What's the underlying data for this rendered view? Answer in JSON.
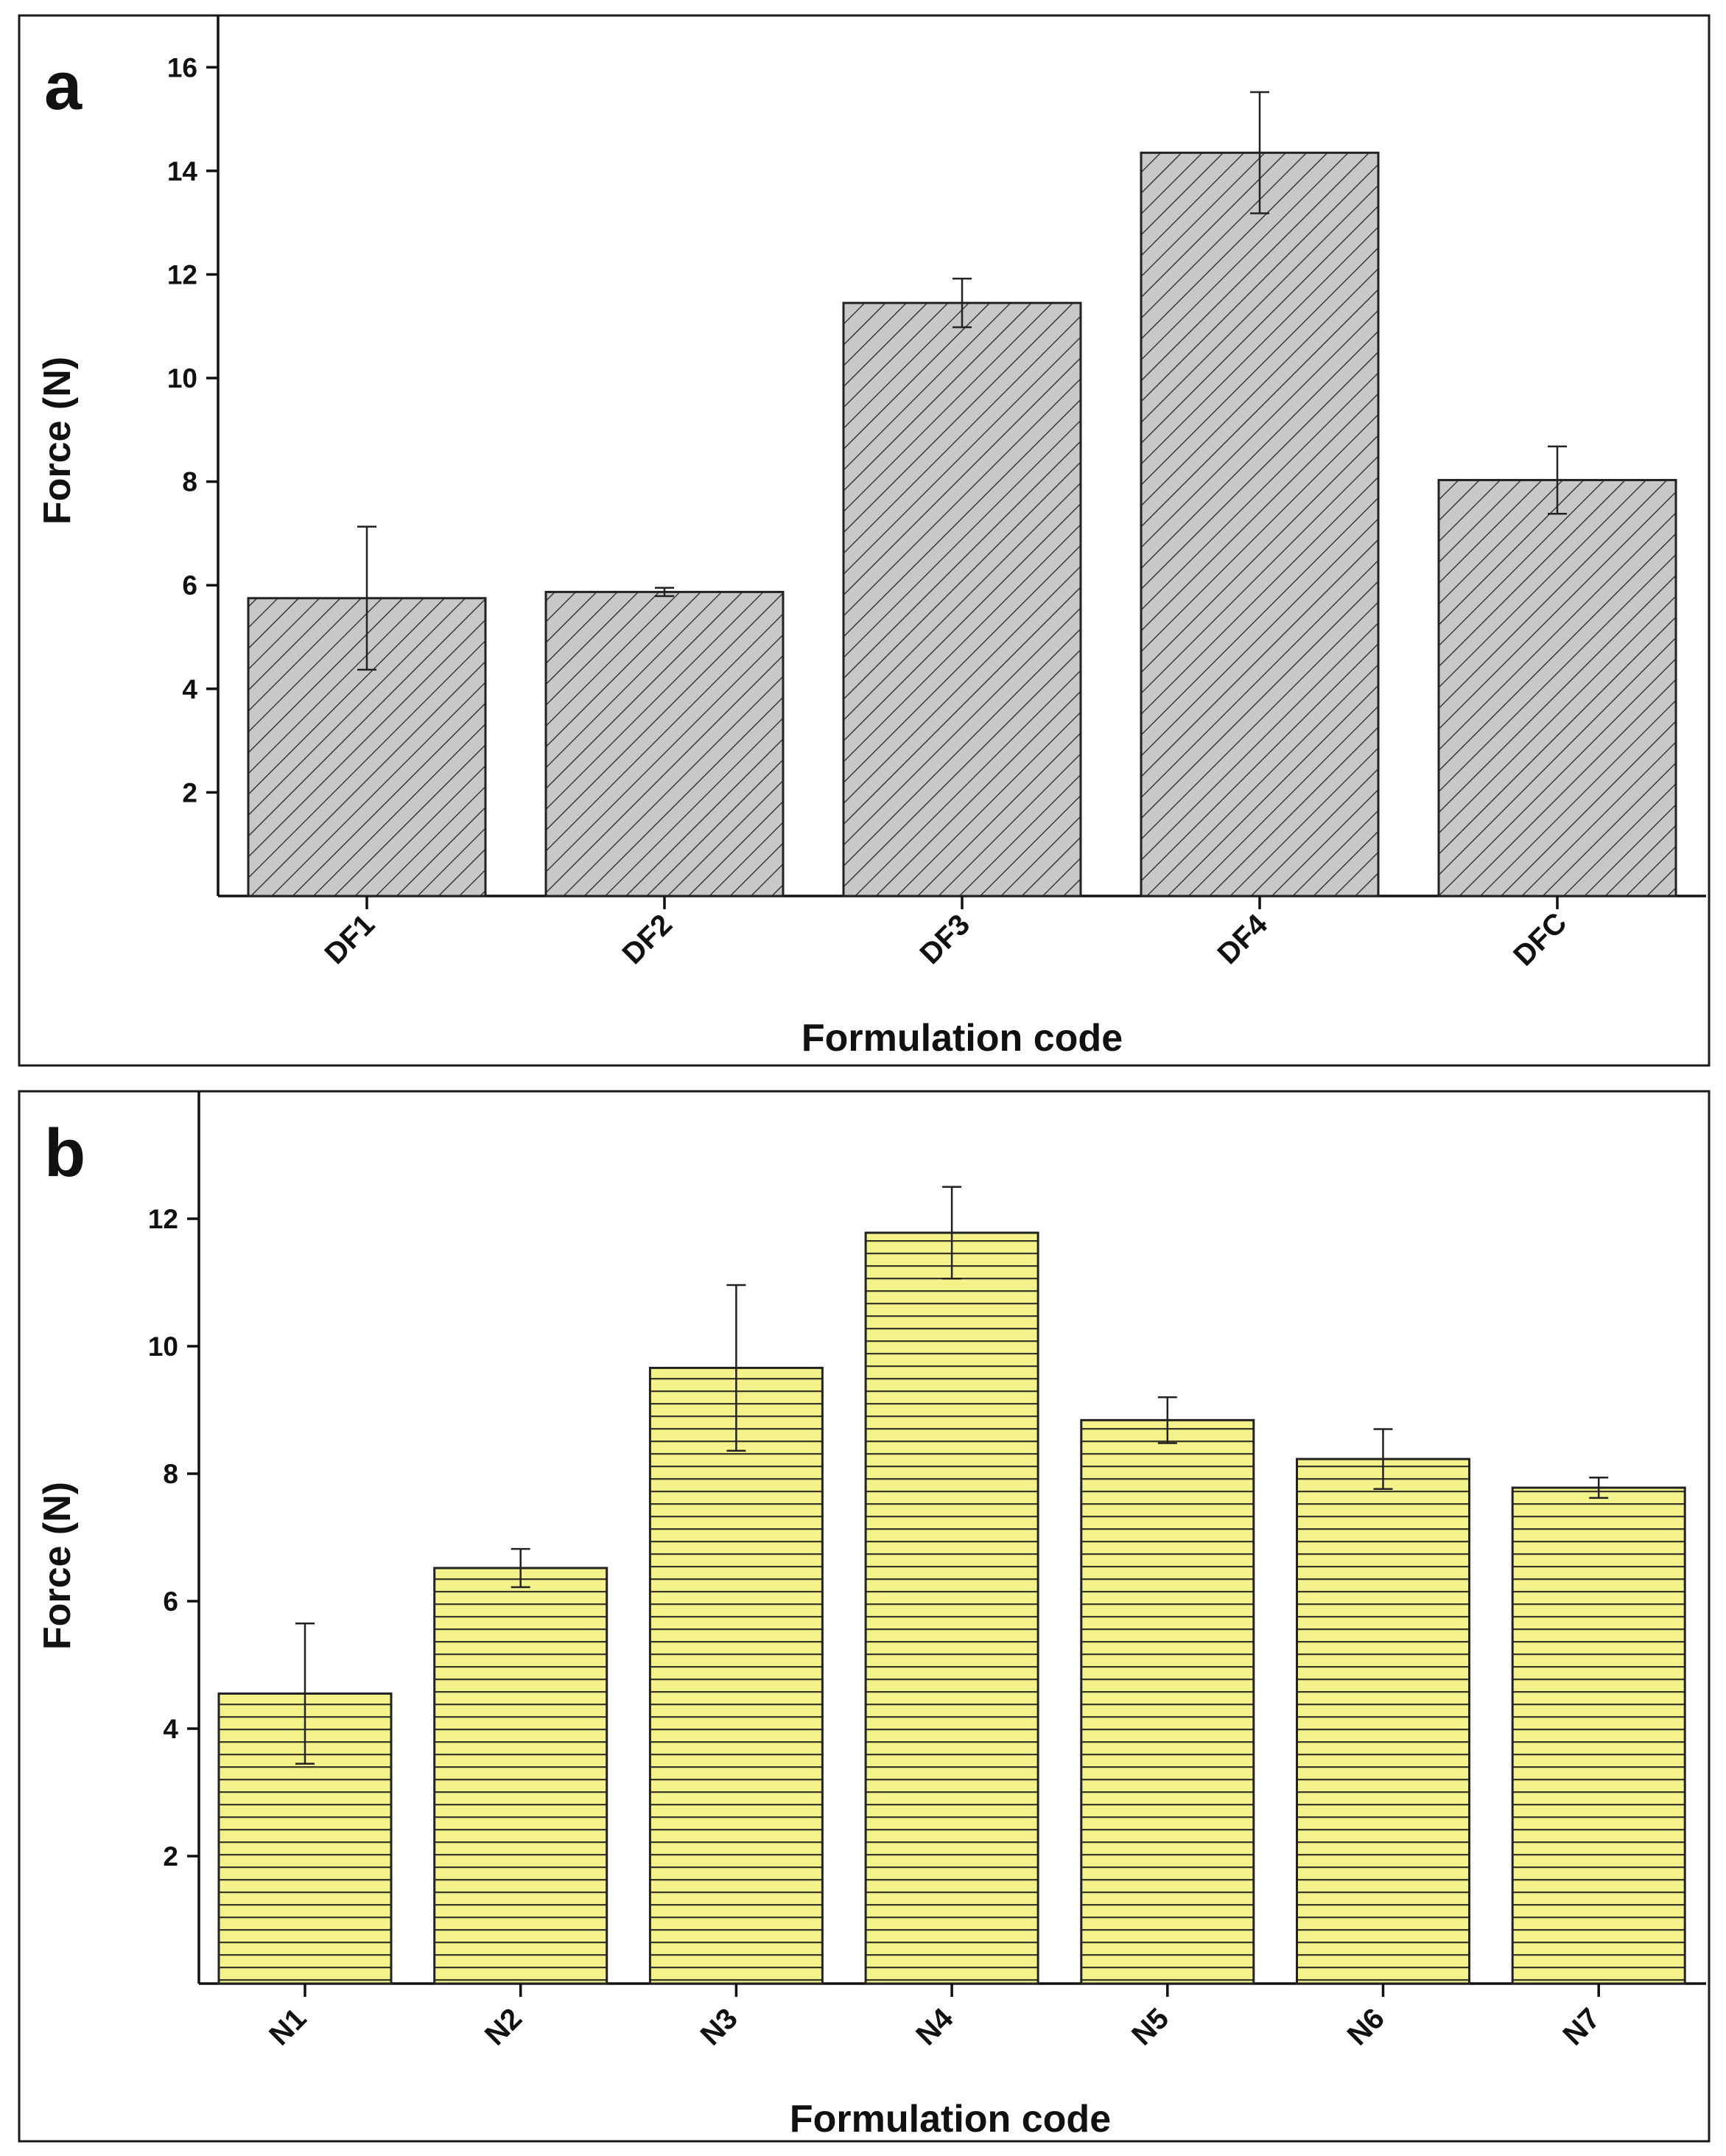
{
  "chart_data": [
    {
      "type": "bar",
      "panel_label": "a",
      "categories": [
        "DF1",
        "DF2",
        "DF3",
        "DF4",
        "DFC"
      ],
      "series": [
        {
          "values": [
            5.75,
            5.87,
            11.45,
            14.35,
            8.03
          ],
          "errors": [
            1.38,
            0.08,
            0.47,
            1.17,
            0.65
          ]
        }
      ],
      "xlabel": "Formulation code",
      "ylabel": "Force (N)",
      "yticks": [
        2,
        4,
        6,
        8,
        10,
        12,
        14,
        16
      ],
      "ylim": [
        0,
        17
      ],
      "bar_fill": "#c8c8c8",
      "hatch": "diagonal",
      "grid": false
    },
    {
      "type": "bar",
      "panel_label": "b",
      "categories": [
        "N1",
        "N2",
        "N3",
        "N4",
        "N5",
        "N6",
        "N7"
      ],
      "series": [
        {
          "values": [
            4.55,
            6.52,
            9.66,
            11.78,
            8.84,
            8.23,
            7.78
          ],
          "errors": [
            1.1,
            0.3,
            1.3,
            0.72,
            0.36,
            0.47,
            0.16
          ]
        }
      ],
      "xlabel": "Formulation code",
      "ylabel": "Force (N)",
      "yticks": [
        2,
        4,
        6,
        8,
        10,
        12
      ],
      "ylim": [
        0,
        14
      ],
      "bar_fill": "#f4f28a",
      "hatch": "horizontal",
      "grid": false
    }
  ]
}
